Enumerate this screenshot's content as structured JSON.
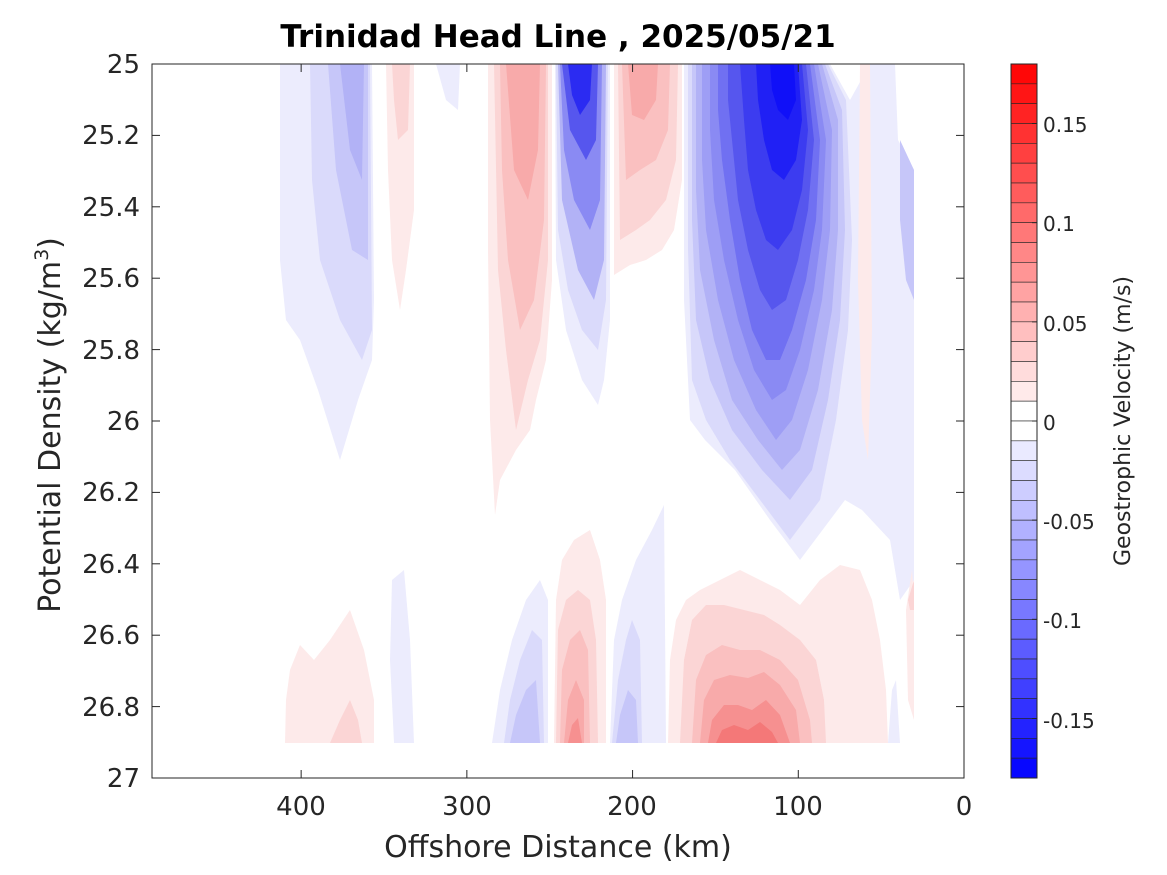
{
  "chart_data": {
    "type": "heatmap",
    "subtype": "filled-contour",
    "title": "Trinidad Head Line , 2025/05/21",
    "xlabel": "Offshore Distance (km)",
    "ylabel_main": "Potential Density (kg/m",
    "ylabel_sup": "3",
    "ylabel_close": ")",
    "xlim": [
      490,
      0
    ],
    "x_direction": "reversed",
    "x_ticks": [
      "400",
      "300",
      "200",
      "100",
      "0"
    ],
    "x_tick_values": [
      400,
      300,
      200,
      100,
      0
    ],
    "ylim": [
      25,
      27
    ],
    "y_direction": "reversed",
    "y_ticks": [
      "25",
      "25.2",
      "25.4",
      "25.6",
      "25.8",
      "26",
      "26.2",
      "26.4",
      "26.6",
      "26.8",
      "27"
    ],
    "y_tick_values": [
      25,
      25.2,
      25.4,
      25.6,
      25.8,
      26,
      26.2,
      26.4,
      26.6,
      26.8,
      27
    ],
    "colorbar": {
      "label": "Geostrophic Velocity (m/s)",
      "range": [
        -0.18,
        0.18
      ],
      "step": 0.01,
      "ticks": [
        "0.15",
        "0.1",
        "0.05",
        "0",
        "-0.05",
        "-0.1",
        "-0.15"
      ],
      "tick_values": [
        0.15,
        0.1,
        0.05,
        0,
        -0.05,
        -0.1,
        -0.15
      ],
      "colormap": "blue-white-red",
      "negative_color": "#0000ff",
      "positive_color": "#ff0000",
      "zero_color": "#ffffff"
    },
    "data_extent": {
      "x_range": [
        410,
        30
      ],
      "sigma_range": [
        25,
        26.9
      ]
    },
    "features": [
      {
        "name": "weak southward flow",
        "x": 385,
        "sigma_top": 25.0,
        "sigma_bottom": 26.1,
        "peak_velocity": -0.04
      },
      {
        "name": "weak northward flow",
        "x": 335,
        "sigma_top": 25.0,
        "sigma_bottom": 25.7,
        "peak_velocity": 0.02
      },
      {
        "name": "northward jet",
        "x": 265,
        "sigma_top": 25.0,
        "sigma_bottom": 26.2,
        "peak_velocity": 0.04
      },
      {
        "name": "southward jet",
        "x": 230,
        "sigma_top": 25.0,
        "sigma_bottom": 25.9,
        "peak_velocity": -0.13
      },
      {
        "name": "northward flow",
        "x": 200,
        "sigma_top": 25.0,
        "sigma_bottom": 25.6,
        "peak_velocity": 0.04
      },
      {
        "name": "main southward jet",
        "x": 105,
        "sigma_top": 25.0,
        "sigma_bottom": 26.3,
        "peak_velocity": -0.17
      },
      {
        "name": "deep northward flow",
        "x": 230,
        "sigma_top": 26.35,
        "sigma_bottom": 26.9,
        "peak_velocity": 0.07
      },
      {
        "name": "deep northward flow",
        "x": 115,
        "sigma_top": 26.4,
        "sigma_bottom": 26.9,
        "peak_velocity": 0.06
      },
      {
        "name": "deep northward flow",
        "x": 375,
        "sigma_top": 26.5,
        "sigma_bottom": 26.9,
        "peak_velocity": 0.02
      }
    ]
  }
}
